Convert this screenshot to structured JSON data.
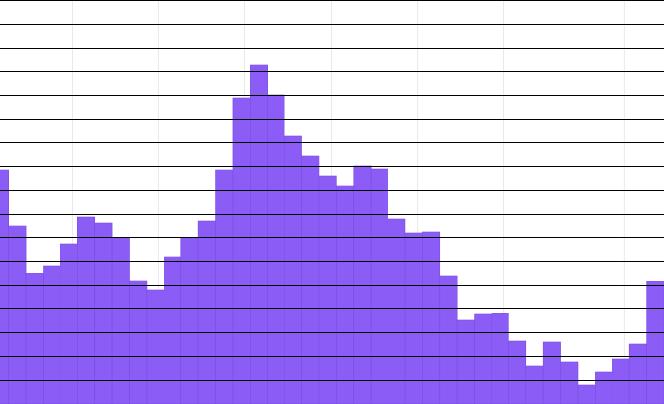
{
  "chart_data": {
    "type": "bar",
    "title": "",
    "xlabel": "",
    "ylabel": "",
    "values": [
      264,
      201,
      147,
      155,
      180,
      211,
      204,
      187,
      139,
      128,
      166,
      187,
      206,
      264,
      345,
      382,
      348,
      302,
      279,
      257,
      246,
      268,
      265,
      208,
      193,
      194,
      144,
      95,
      101,
      102,
      71,
      43,
      70,
      47,
      21,
      36,
      51,
      68,
      138
    ],
    "ylim": [
      0,
      455
    ],
    "xlim": [
      0,
      38.5
    ],
    "bar_color": "#8b5cf6",
    "bar_edge_color": "#7c4ddc",
    "hgrid_color": "#000000",
    "vgrid_color": "#e9e9ee",
    "hgrid_values": [
      27,
      54,
      81,
      108,
      134,
      161,
      188,
      214,
      241,
      268,
      295,
      321,
      348,
      375,
      401,
      428,
      455
    ],
    "vgrid_values": [
      4.2,
      9.2,
      14.2,
      19.2,
      24.2,
      29.2,
      36.2
    ],
    "grid": true
  }
}
